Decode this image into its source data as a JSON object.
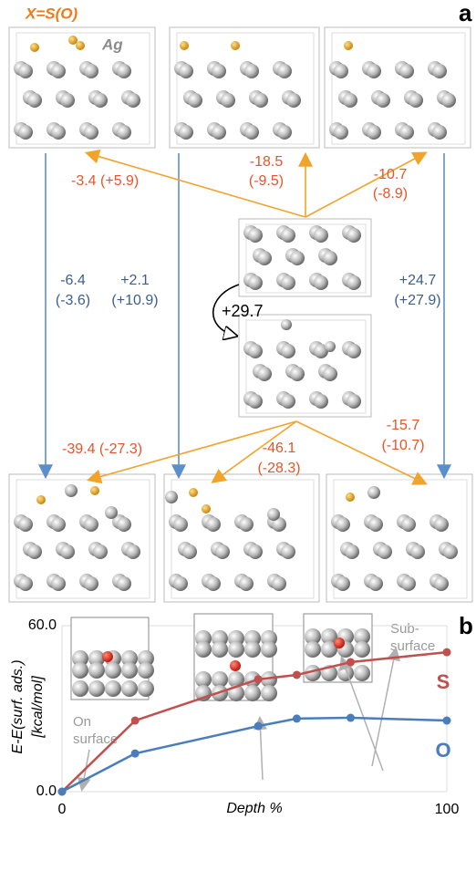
{
  "panel_a": {
    "label": "a",
    "species": "X=S(O)",
    "metal": "Ag",
    "energies": [
      [
        "-3.4 (+5.9)"
      ],
      [
        "-18.5",
        "(-9.5)"
      ],
      [
        "-10.7",
        "(-8.9)"
      ],
      [
        "-6.4",
        "(-3.6)"
      ],
      [
        "+2.1",
        "(+10.9)"
      ],
      [
        "+24.7",
        "(+27.9)"
      ],
      [
        "+29.7"
      ],
      [
        "-39.4 (-27.3)"
      ],
      [
        "-46.1",
        "(-28.3)"
      ],
      [
        "-15.7",
        "(-10.7)"
      ]
    ]
  },
  "chart_data": {
    "type": "line",
    "title": "b",
    "xlabel": "Depth %",
    "ylabel": [
      "E-E(surf. ads.)",
      "[kcal/mol]"
    ],
    "x": [
      0,
      19,
      51,
      61,
      75,
      100
    ],
    "series": [
      {
        "name": "S",
        "color": "#c0504d",
        "values": [
          0,
          25.7,
          40.6,
          42.2,
          46.8,
          50.4
        ]
      },
      {
        "name": "O",
        "color": "#4a7ebb",
        "values": [
          0,
          13.8,
          23.7,
          26.4,
          26.7,
          25.7
        ]
      }
    ],
    "xlim": [
      0,
      100
    ],
    "ylim": [
      0,
      60
    ],
    "xticks": [
      0,
      100
    ],
    "yticks": [
      {
        "value": 0,
        "label": "0.0"
      },
      {
        "value": 60,
        "label": "60.0"
      }
    ],
    "grid": true,
    "annotations": [
      [
        "On",
        "surface"
      ],
      [
        "Sub-",
        "surface"
      ]
    ]
  }
}
